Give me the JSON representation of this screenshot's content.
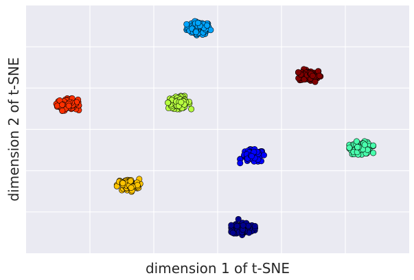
{
  "chart_data": {
    "type": "scatter",
    "xlabel": "dimension 1 of t-SNE",
    "ylabel": "dimension 2 of t-SNE",
    "grid": true,
    "tick_labels_shown": false,
    "background_color": "#EAEAF2",
    "grid_color": "#FFFFFF",
    "marker_edge_color": "#000000",
    "xlim": [
      0,
      12
    ],
    "ylim": [
      0,
      12
    ],
    "x_gridlines": [
      2,
      4,
      6,
      8,
      10
    ],
    "y_gridlines": [
      2,
      4,
      6,
      8,
      10
    ],
    "clusters": [
      {
        "color": "#00A4FF",
        "center": [
          5.4,
          10.9
        ],
        "spread": 0.18
      },
      {
        "color": "#800000",
        "center": [
          8.9,
          8.6
        ],
        "spread": 0.17
      },
      {
        "color": "#FF3000",
        "center": [
          1.3,
          7.2
        ],
        "spread": 0.16
      },
      {
        "color": "#B7FF40",
        "center": [
          4.8,
          7.3
        ],
        "spread": 0.17
      },
      {
        "color": "#0000FF",
        "center": [
          7.1,
          4.7
        ],
        "spread": 0.18
      },
      {
        "color": "#49FFAD",
        "center": [
          10.5,
          5.1
        ],
        "spread": 0.17
      },
      {
        "color": "#FFC400",
        "center": [
          3.2,
          3.3
        ],
        "spread": 0.17
      },
      {
        "color": "#00008F",
        "center": [
          6.8,
          1.2
        ],
        "spread": 0.17
      }
    ],
    "outliers": [
      {
        "color": "#0000FF",
        "x": 7.45,
        "y": 4.75
      },
      {
        "color": "#00008F",
        "x": 6.65,
        "y": 1.65
      }
    ]
  }
}
